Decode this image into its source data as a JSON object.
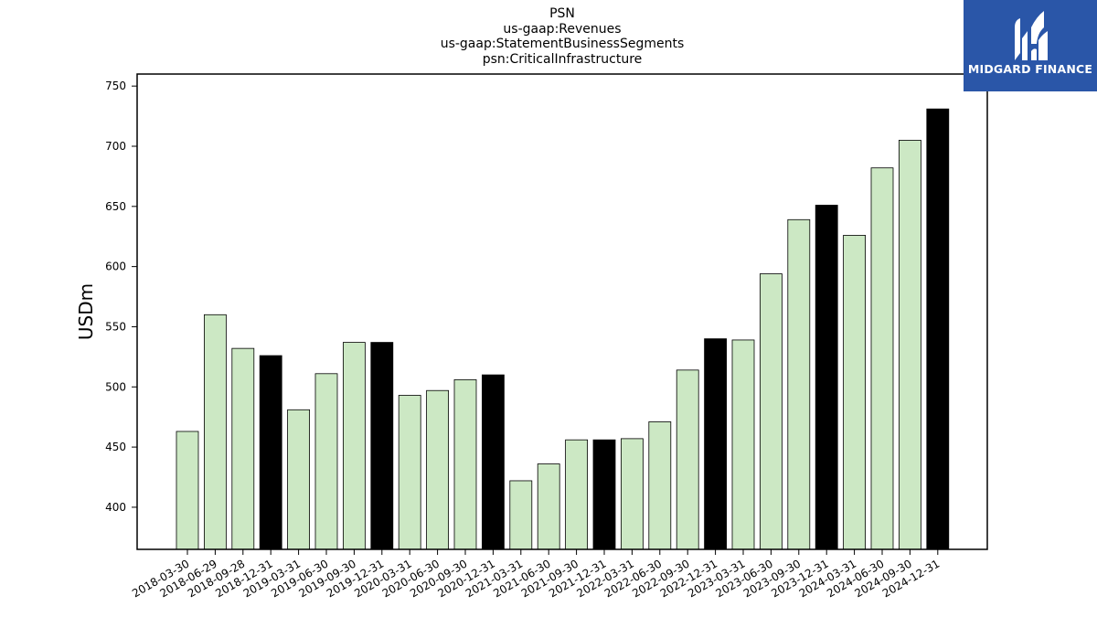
{
  "chart_data": {
    "type": "bar",
    "title_lines": [
      "PSN",
      "us-gaap:Revenues",
      "us-gaap:StatementBusinessSegments",
      "psn:CriticalInfrastructure"
    ],
    "xlabel": "",
    "ylabel": "USDm",
    "ylim": [
      365,
      760
    ],
    "yticks": [
      400,
      450,
      500,
      550,
      600,
      650,
      700,
      750
    ],
    "ytick_labels": [
      "400",
      "450",
      "500",
      "550",
      "600",
      "650",
      "700",
      "750"
    ],
    "categories": [
      "2018-03-30",
      "2018-06-29",
      "2018-09-28",
      "2018-12-31",
      "2019-03-31",
      "2019-06-30",
      "2019-09-30",
      "2019-12-31",
      "2020-03-31",
      "2020-06-30",
      "2020-09-30",
      "2020-12-31",
      "2021-03-31",
      "2021-06-30",
      "2021-09-30",
      "2021-12-31",
      "2022-03-31",
      "2022-06-30",
      "2022-09-30",
      "2022-12-31",
      "2023-03-31",
      "2023-06-30",
      "2023-09-30",
      "2023-12-31",
      "2024-03-31",
      "2024-06-30",
      "2024-09-30",
      "2024-12-31"
    ],
    "values": [
      463,
      560,
      532,
      526,
      481,
      511,
      537,
      537,
      493,
      497,
      506,
      510,
      422,
      436,
      456,
      456,
      457,
      471,
      514,
      540,
      539,
      594,
      639,
      651,
      626,
      682,
      705,
      731
    ],
    "highlight": [
      false,
      false,
      false,
      true,
      false,
      false,
      false,
      true,
      false,
      false,
      false,
      true,
      false,
      false,
      false,
      true,
      false,
      false,
      false,
      true,
      false,
      false,
      false,
      true,
      false,
      false,
      false,
      true
    ],
    "colors": {
      "bar": "#cce8c4",
      "highlight": "#000000",
      "edge": "#000000"
    },
    "grid": false
  },
  "logo": {
    "text": "MIDGARD FINANCE",
    "background": "#2a56a8"
  }
}
